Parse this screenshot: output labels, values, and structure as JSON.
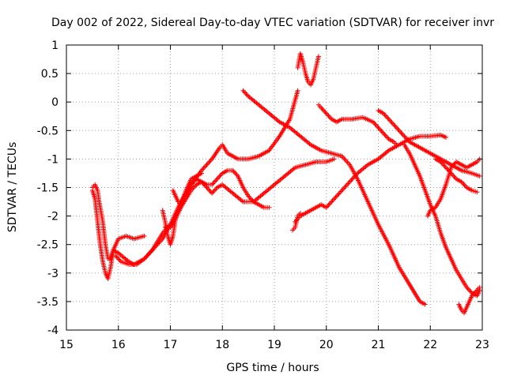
{
  "chart_data": {
    "type": "scatter",
    "title": "Day 002 of 2022, Sidereal Day-to-day VTEC variation (SDTVAR) for receiver invr",
    "xlabel": "GPS time / hours",
    "ylabel": "SDTVAR / TECUs",
    "xlim": [
      15,
      23
    ],
    "ylim": [
      -4,
      1
    ],
    "xticks": [
      "15",
      "16",
      "17",
      "18",
      "19",
      "20",
      "21",
      "22",
      "23"
    ],
    "yticks": [
      "1",
      "0.5",
      "0",
      "-0.5",
      "-1",
      "-1.5",
      "-2",
      "-2.5",
      "-3",
      "-3.5",
      "-4"
    ],
    "grid": true,
    "marker": "+",
    "color": "#ff0000",
    "series": [
      {
        "x": [
          15.5,
          15.55,
          15.6,
          15.63,
          15.7,
          15.75,
          15.8,
          15.85,
          15.9,
          16.0,
          16.15,
          16.3,
          16.5
        ],
        "y": [
          -1.5,
          -1.45,
          -1.55,
          -1.75,
          -2.1,
          -2.5,
          -2.75,
          -2.75,
          -2.6,
          -2.4,
          -2.35,
          -2.4,
          -2.35
        ]
      },
      {
        "x": [
          15.5,
          15.55,
          15.6,
          15.65,
          15.7,
          15.75,
          15.8,
          15.85,
          15.9,
          16.0,
          16.2,
          16.3,
          16.5,
          16.7,
          16.85,
          17.0,
          17.2,
          17.4,
          17.6,
          17.8,
          17.95,
          18.0,
          18.1,
          18.3,
          18.5,
          18.7,
          18.9,
          19.1,
          19.3,
          19.45
        ],
        "y": [
          -1.55,
          -1.7,
          -2.1,
          -2.5,
          -2.8,
          -3.0,
          -3.1,
          -2.9,
          -2.6,
          -2.65,
          -2.8,
          -2.85,
          -2.75,
          -2.55,
          -2.4,
          -2.15,
          -1.75,
          -1.45,
          -1.2,
          -1.0,
          -0.8,
          -0.75,
          -0.9,
          -1.0,
          -1.0,
          -0.95,
          -0.85,
          -0.6,
          -0.3,
          0.2
        ]
      },
      {
        "x": [
          19.45,
          19.5,
          19.55,
          19.6,
          19.65,
          19.7,
          19.75,
          19.8,
          19.85
        ],
        "y": [
          0.6,
          0.85,
          0.7,
          0.5,
          0.35,
          0.3,
          0.4,
          0.6,
          0.8
        ]
      },
      {
        "x": [
          18.4,
          18.5,
          18.7,
          18.9,
          19.1,
          19.3,
          19.5,
          19.7,
          19.9,
          20.1,
          20.3,
          20.45,
          20.6,
          20.8,
          21.0,
          21.2,
          21.4,
          21.6,
          21.8,
          21.9
        ],
        "y": [
          0.2,
          0.1,
          -0.05,
          -0.2,
          -0.35,
          -0.45,
          -0.6,
          -0.75,
          -0.85,
          -0.9,
          -0.95,
          -1.1,
          -1.35,
          -1.75,
          -2.15,
          -2.5,
          -2.9,
          -3.2,
          -3.5,
          -3.55
        ]
      },
      {
        "x": [
          15.95,
          16.05,
          16.2,
          16.35,
          16.5,
          16.65,
          16.75,
          16.85,
          17.0,
          17.1,
          17.2,
          17.3,
          17.4,
          17.5,
          17.6,
          17.7,
          17.8,
          17.9,
          18.0,
          18.1,
          18.2,
          18.3,
          18.4,
          18.5,
          18.6,
          18.7,
          18.8,
          18.9
        ],
        "y": [
          -2.7,
          -2.8,
          -2.85,
          -2.85,
          -2.75,
          -2.6,
          -2.45,
          -2.3,
          -2.15,
          -2.0,
          -1.85,
          -1.7,
          -1.55,
          -1.45,
          -1.4,
          -1.45,
          -1.45,
          -1.35,
          -1.25,
          -1.2,
          -1.2,
          -1.3,
          -1.5,
          -1.65,
          -1.75,
          -1.8,
          -1.85,
          -1.85
        ]
      },
      {
        "x": [
          16.9,
          17.0,
          17.1,
          17.2,
          17.3,
          17.4,
          17.5,
          17.6,
          17.7,
          17.8,
          17.9,
          18.0,
          18.2,
          18.4,
          18.6,
          18.8,
          19.0,
          19.2,
          19.4,
          19.6,
          19.8,
          20.0,
          20.15
        ],
        "y": [
          -2.2,
          -2.2,
          -2.05,
          -1.85,
          -1.65,
          -1.45,
          -1.35,
          -1.4,
          -1.5,
          -1.6,
          -1.5,
          -1.45,
          -1.6,
          -1.75,
          -1.75,
          -1.6,
          -1.45,
          -1.3,
          -1.15,
          -1.1,
          -1.05,
          -1.05,
          -1.0
        ]
      },
      {
        "x": [
          17.05,
          17.1,
          17.15,
          17.2,
          17.3,
          17.4,
          17.5,
          17.6
        ],
        "y": [
          -1.55,
          -1.65,
          -1.75,
          -1.8,
          -1.55,
          -1.35,
          -1.3,
          -1.25
        ]
      },
      {
        "x": [
          16.85,
          16.9,
          16.95,
          17.0,
          17.05,
          17.1
        ],
        "y": [
          -1.9,
          -2.1,
          -2.35,
          -2.5,
          -2.35,
          -2.05
        ]
      },
      {
        "x": [
          19.4,
          19.45,
          19.5,
          19.6,
          19.7,
          19.8,
          19.9,
          20.0,
          20.2,
          20.4,
          20.6,
          20.8,
          21.0,
          21.2,
          21.4,
          21.6,
          21.8,
          22.0,
          22.2,
          22.3
        ],
        "y": [
          -2.1,
          -2.05,
          -2.0,
          -1.95,
          -1.9,
          -1.85,
          -1.8,
          -1.85,
          -1.65,
          -1.45,
          -1.25,
          -1.1,
          -1.0,
          -0.85,
          -0.75,
          -0.65,
          -0.6,
          -0.6,
          -0.58,
          -0.62
        ]
      },
      {
        "x": [
          19.35,
          19.4,
          19.45,
          19.5
        ],
        "y": [
          -2.25,
          -2.2,
          -2.0,
          -1.95
        ]
      },
      {
        "x": [
          19.85,
          19.9,
          20.0,
          20.1,
          20.2,
          20.3,
          20.5,
          20.7,
          20.9,
          21.0,
          21.1,
          21.2,
          21.3,
          21.35
        ],
        "y": [
          -0.05,
          -0.1,
          -0.2,
          -0.3,
          -0.35,
          -0.3,
          -0.3,
          -0.27,
          -0.35,
          -0.45,
          -0.55,
          -0.65,
          -0.7,
          -0.75
        ]
      },
      {
        "x": [
          21.0,
          21.1,
          21.2,
          21.3,
          21.4,
          21.5,
          21.6,
          21.7,
          21.8,
          21.9,
          22.0,
          22.2,
          22.4,
          22.6,
          22.8,
          22.95
        ],
        "y": [
          -0.15,
          -0.2,
          -0.3,
          -0.4,
          -0.5,
          -0.6,
          -0.7,
          -0.75,
          -0.8,
          -0.85,
          -0.9,
          -1.0,
          -1.1,
          -1.2,
          -1.25,
          -1.3
        ]
      },
      {
        "x": [
          21.5,
          21.6,
          21.7,
          21.8,
          21.9,
          22.0,
          22.1,
          22.2,
          22.3,
          22.4,
          22.5,
          22.6,
          22.7,
          22.8,
          22.9,
          22.95
        ],
        "y": [
          -0.75,
          -0.9,
          -1.1,
          -1.3,
          -1.55,
          -1.8,
          -2.0,
          -2.3,
          -2.55,
          -2.75,
          -2.95,
          -3.1,
          -3.25,
          -3.35,
          -3.4,
          -3.3
        ]
      },
      {
        "x": [
          21.95,
          22.0,
          22.1,
          22.2,
          22.3,
          22.4,
          22.5,
          22.6,
          22.7,
          22.8,
          22.9,
          22.95
        ],
        "y": [
          -2.0,
          -1.9,
          -1.85,
          -1.7,
          -1.45,
          -1.15,
          -1.05,
          -1.1,
          -1.15,
          -1.1,
          -1.05,
          -1.0
        ]
      },
      {
        "x": [
          22.1,
          22.2,
          22.3,
          22.4,
          22.5,
          22.6,
          22.7,
          22.8,
          22.9
        ],
        "y": [
          -1.0,
          -1.05,
          -1.15,
          -1.25,
          -1.35,
          -1.4,
          -1.5,
          -1.55,
          -1.58
        ]
      },
      {
        "x": [
          22.55,
          22.6,
          22.65,
          22.7,
          22.8,
          22.9,
          22.95
        ],
        "y": [
          -3.55,
          -3.65,
          -3.7,
          -3.6,
          -3.4,
          -3.3,
          -3.25
        ]
      }
    ]
  }
}
